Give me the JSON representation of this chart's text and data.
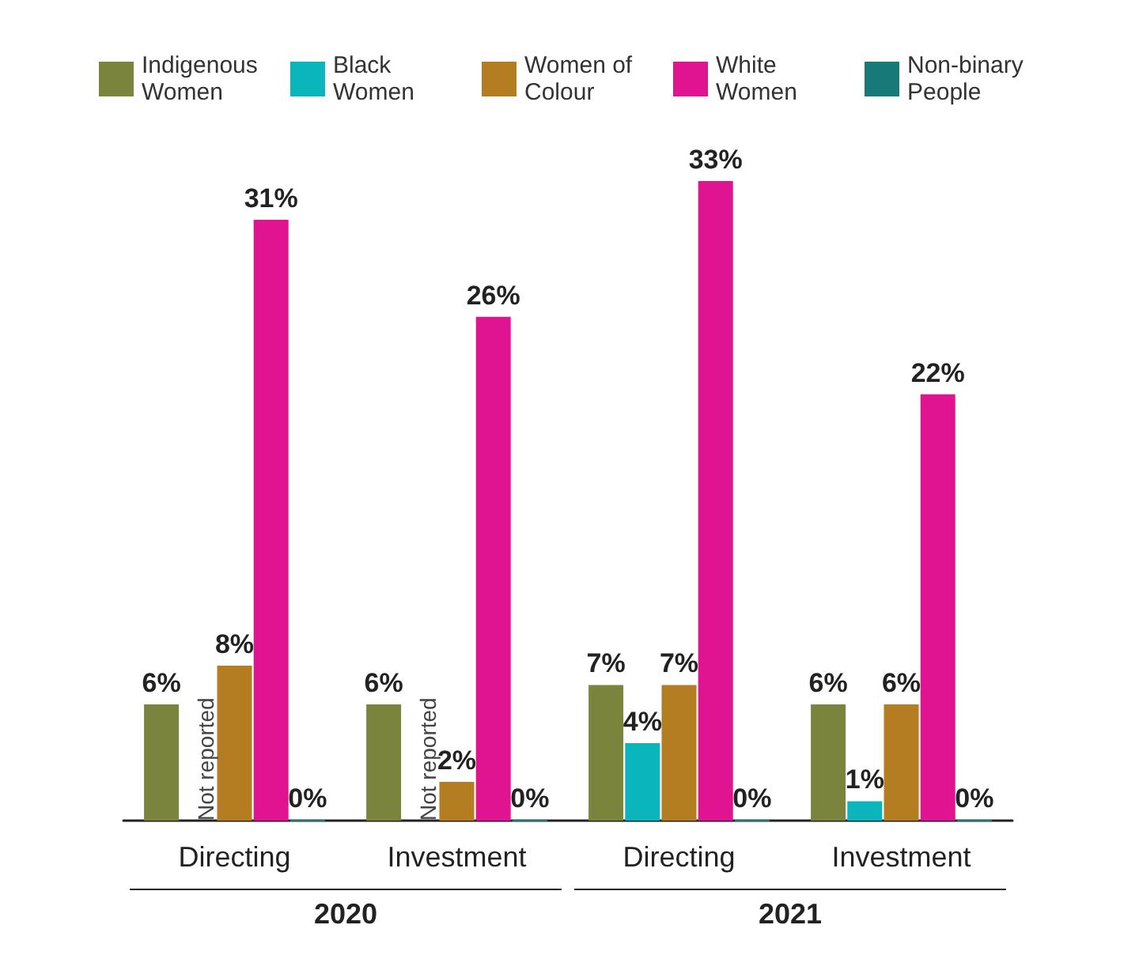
{
  "chart_data": {
    "type": "bar",
    "categories": [
      "Directing",
      "Investment",
      "Directing",
      "Investment"
    ],
    "annotations": [
      "2020",
      "2021"
    ],
    "series": [
      {
        "name": "Indigenous Women",
        "color": "#7b843c",
        "values": [
          6,
          6,
          7,
          6
        ],
        "value_labels": [
          "6%",
          "6%",
          "7%",
          "6%"
        ]
      },
      {
        "name": "Black Women",
        "color": "#0ab5bc",
        "values": [
          null,
          null,
          4,
          1
        ],
        "value_labels": [
          "Not reported",
          "Not reported",
          "4%",
          "1%"
        ]
      },
      {
        "name": "Women of Colour",
        "color": "#b57d21",
        "values": [
          8,
          2,
          7,
          6
        ],
        "value_labels": [
          "8%",
          "2%",
          "7%",
          "6%"
        ]
      },
      {
        "name": "White Women",
        "color": "#e01491",
        "values": [
          31,
          26,
          33,
          22
        ],
        "value_labels": [
          "31%",
          "26%",
          "33%",
          "22%"
        ]
      },
      {
        "name": "Non-binary People",
        "color": "#187a78",
        "values": [
          0,
          0,
          0,
          0
        ],
        "value_labels": [
          "0%",
          "0%",
          "0%",
          "0%"
        ]
      }
    ],
    "legend": "top"
  }
}
